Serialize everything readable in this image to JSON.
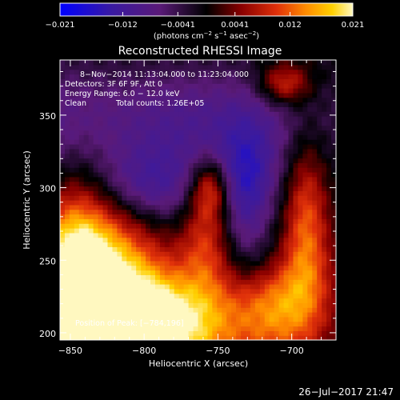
{
  "colorbar": {
    "tick_labels": [
      "−0.021",
      "−0.012",
      "−0.0041",
      "0.0041",
      "0.012",
      "0.021"
    ],
    "tick_values": [
      -0.021,
      -0.012,
      -0.0041,
      0.0041,
      0.012,
      0.021
    ],
    "range": [
      -0.021,
      0.021
    ],
    "units_label": "(photons cm",
    "units_sup1": "−2",
    "units_mid": " s",
    "units_sup2": "−1",
    "units_end": " asec",
    "units_sup3": "−2",
    "units_close": ")",
    "colors": [
      "#0000ff",
      "#3a1aa0",
      "#5a1a78",
      "#000000",
      "#8a0000",
      "#e0300a",
      "#ff8c00",
      "#ffd000",
      "#fff8c0"
    ]
  },
  "chart_data": {
    "type": "heatmap",
    "title": "Reconstructed RHESSI Image",
    "xlabel": "Heliocentric X (arcsec)",
    "ylabel": "Heliocentric Y (arcsec)",
    "xlim": [
      -857,
      -670
    ],
    "ylim": [
      195,
      388
    ],
    "x_ticks": [
      -850,
      -800,
      -750,
      -700
    ],
    "x_tick_labels": [
      "−850",
      "−800",
      "−750",
      "−700"
    ],
    "y_ticks": [
      200,
      250,
      300,
      350
    ],
    "y_tick_labels": [
      "200",
      "250",
      "300",
      "350"
    ],
    "annotations": [
      "8−Nov−2014 11:13:04.000 to 11:23:04.000",
      "Detectors: 3F 6F 9F, Att 0",
      "Energy Range: 6.0 − 12.0 keV",
      "Clean",
      "Total counts: 1.26E+05"
    ],
    "peak_label": "Position of Peak: [−784,196]",
    "peak_position": [
      -784,
      196
    ],
    "colorscale": "RHESSI blue-black-red-yellow",
    "dominant_features": [
      {
        "kind": "bright-source",
        "x": -790,
        "y": 205,
        "intensity": 1.0
      },
      {
        "kind": "flare-loop-top",
        "x": -753,
        "y": 300,
        "intensity": 0.7
      },
      {
        "kind": "negative-swirl",
        "x": -760,
        "y": 340,
        "intensity": -0.8
      }
    ]
  },
  "footer": {
    "timestamp": "26−Jul−2017 21:47"
  }
}
